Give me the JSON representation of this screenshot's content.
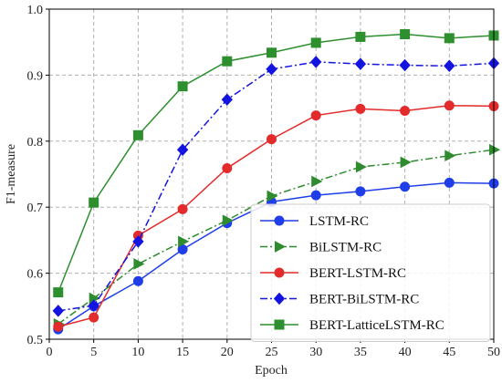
{
  "chart_data": {
    "type": "line",
    "title": "",
    "xlabel": "Epoch",
    "ylabel": "F1-measure",
    "xlim": [
      0,
      50
    ],
    "ylim": [
      0.5,
      1.0
    ],
    "xticks": [
      0,
      5,
      10,
      15,
      20,
      25,
      30,
      35,
      40,
      45,
      50
    ],
    "yticks": [
      0.5,
      0.6,
      0.7,
      0.8,
      0.9,
      1.0
    ],
    "xtick_labels": [
      "0",
      "5",
      "10",
      "15",
      "20",
      "25",
      "30",
      "35",
      "40",
      "45",
      "50"
    ],
    "ytick_labels": [
      "0.5",
      "0.6",
      "0.7",
      "0.8",
      "0.9",
      "1.0"
    ],
    "grid": true,
    "legend_position": "bottom-right",
    "x": [
      1,
      5,
      10,
      15,
      20,
      25,
      30,
      35,
      40,
      45,
      50
    ],
    "series": [
      {
        "name": "LSTM-RC",
        "color": "#1f3ee8",
        "marker": "circle",
        "dash": "solid",
        "values": [
          0.515,
          0.55,
          0.588,
          0.636,
          0.676,
          0.708,
          0.718,
          0.724,
          0.731,
          0.737,
          0.736
        ]
      },
      {
        "name": "BiLSTM-RC",
        "color": "#2e8b2e",
        "marker": "triangle-right",
        "dash": "dashdot",
        "values": [
          0.523,
          0.562,
          0.614,
          0.648,
          0.68,
          0.717,
          0.739,
          0.761,
          0.768,
          0.778,
          0.787
        ]
      },
      {
        "name": "BERT-LSTM-RC",
        "color": "#e32b2b",
        "marker": "circle",
        "dash": "solid",
        "values": [
          0.519,
          0.533,
          0.657,
          0.697,
          0.759,
          0.803,
          0.839,
          0.849,
          0.846,
          0.854,
          0.853
        ]
      },
      {
        "name": "BERT-BiLSTM-RC",
        "color": "#1414e0",
        "marker": "diamond",
        "dash": "dashdot",
        "values": [
          0.543,
          0.551,
          0.648,
          0.787,
          0.863,
          0.909,
          0.92,
          0.917,
          0.915,
          0.914,
          0.918
        ]
      },
      {
        "name": "BERT-LatticeLSTM-RC",
        "color": "#2d8f2d",
        "marker": "square",
        "dash": "solid",
        "values": [
          0.571,
          0.707,
          0.809,
          0.883,
          0.921,
          0.934,
          0.949,
          0.958,
          0.962,
          0.956,
          0.96
        ]
      }
    ]
  }
}
